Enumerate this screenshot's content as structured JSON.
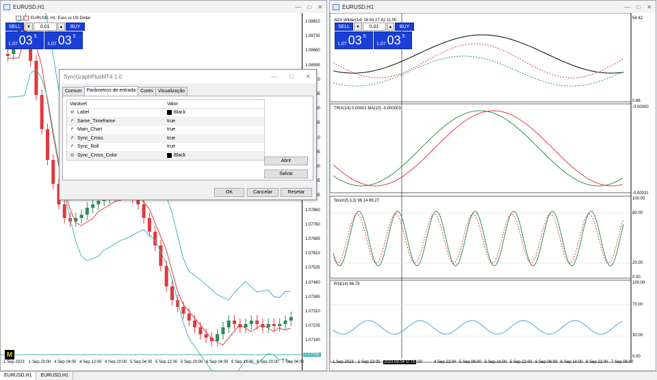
{
  "left_window": {
    "title": "EURUSD,H1",
    "chart_label": "EURUSD, H1:  Euro vs US Dollar",
    "price_axis": [
      "1.08810",
      "1.08735",
      "1.08660",
      "1.08585",
      "1.08510",
      "1.08435",
      "1.08360",
      "1.08285",
      "1.08210",
      "1.08135",
      "1.08060",
      "1.07985",
      "1.07935",
      "1.07860",
      "1.07760",
      "1.07685",
      "1.07610",
      "1.07535",
      "1.07460",
      "1.07385",
      "1.07310",
      "1.07235",
      "1.07160",
      "1.07085"
    ],
    "current_price": "1.07035",
    "time_axis": [
      "1 Sep 2023",
      "1 Sep 20:00",
      "4 Sep 04:00",
      "4 Sep 12:00",
      "4 Sep 20:00",
      "5 Sep 04:00",
      "5 Sep 12:00",
      "5 Sep 20:00",
      "6 Sep 04:00",
      "6 Sep 12:00",
      "6 Sep 20:00",
      "7 Sep 04:00"
    ],
    "badge": "M"
  },
  "right_window": {
    "title": "EURUSD,H1",
    "adx_label": "ADX Wilder(14) 16.93 27.42 11.00",
    "adx_scale": [
      "56.42",
      "0.86"
    ],
    "trix_label": "TRIX(14) 0.00001 MA(10) -0.000003",
    "trix_scale": [
      "-0.00000",
      "-0.00031"
    ],
    "stoch_label": "Stoch(5,3,3) 96.14 89.27",
    "stoch_scale": [
      "100.00",
      "80.00",
      "20.00",
      "0.00"
    ],
    "rsi_label": "RSI(14) 66.79",
    "rsi_scale": [
      "100.00",
      "70.00",
      "30.00",
      "0.00"
    ],
    "time_axis": [
      "1 Sep 2023",
      "1 Sep 22:00",
      "2023.09.04 11:00",
      "p 14:00",
      "4 Sep 22:00",
      "5 Sep 06:00",
      "5 Sep 14:00",
      "5 Sep 22:00",
      "6 Sep 06:00",
      "6 Sep 14:00",
      "6 Sep 22:00",
      "7 Sep 06:00"
    ]
  },
  "trade_panel": {
    "sell_label": "SELL",
    "buy_label": "BUY",
    "lot": "0.01",
    "sell_price_prefix": "1.07",
    "sell_price_big": "03",
    "sell_price_sup": "5",
    "buy_price_prefix": "1.07",
    "buy_price_big": "03",
    "buy_price_sup": "5"
  },
  "dialog": {
    "title": "SyncGraphPlusMT4 1.0",
    "tabs": [
      "Comum",
      "Parâmetros de entrada",
      "Cores",
      "Visualização"
    ],
    "col_variable": "Variável",
    "col_value": "Valor",
    "rows": [
      {
        "name": "Label",
        "value": "Black",
        "swatch": true
      },
      {
        "name": "Same_Timeframe",
        "value": "true",
        "swatch": false
      },
      {
        "name": "Main_Chart",
        "value": "true",
        "swatch": false
      },
      {
        "name": "Sync_Cross",
        "value": "true",
        "swatch": false
      },
      {
        "name": "Sync_Roll",
        "value": "true",
        "swatch": false
      },
      {
        "name": "Sync_Cross_Color",
        "value": "Black",
        "swatch": true
      }
    ],
    "open_btn": "Abrir",
    "save_btn": "Salvar",
    "ok_btn": "OK",
    "cancel_btn": "Cancelar",
    "reset_btn": "Resetar"
  },
  "status_tabs": [
    "EURUSD,H1",
    "EURUSD,H1"
  ],
  "colors": {
    "bull": "#2e8b57",
    "bear": "#e0393e",
    "ma": "#e0393e",
    "band": "#3fb6b6",
    "button_blue": "#1a3fd6"
  }
}
